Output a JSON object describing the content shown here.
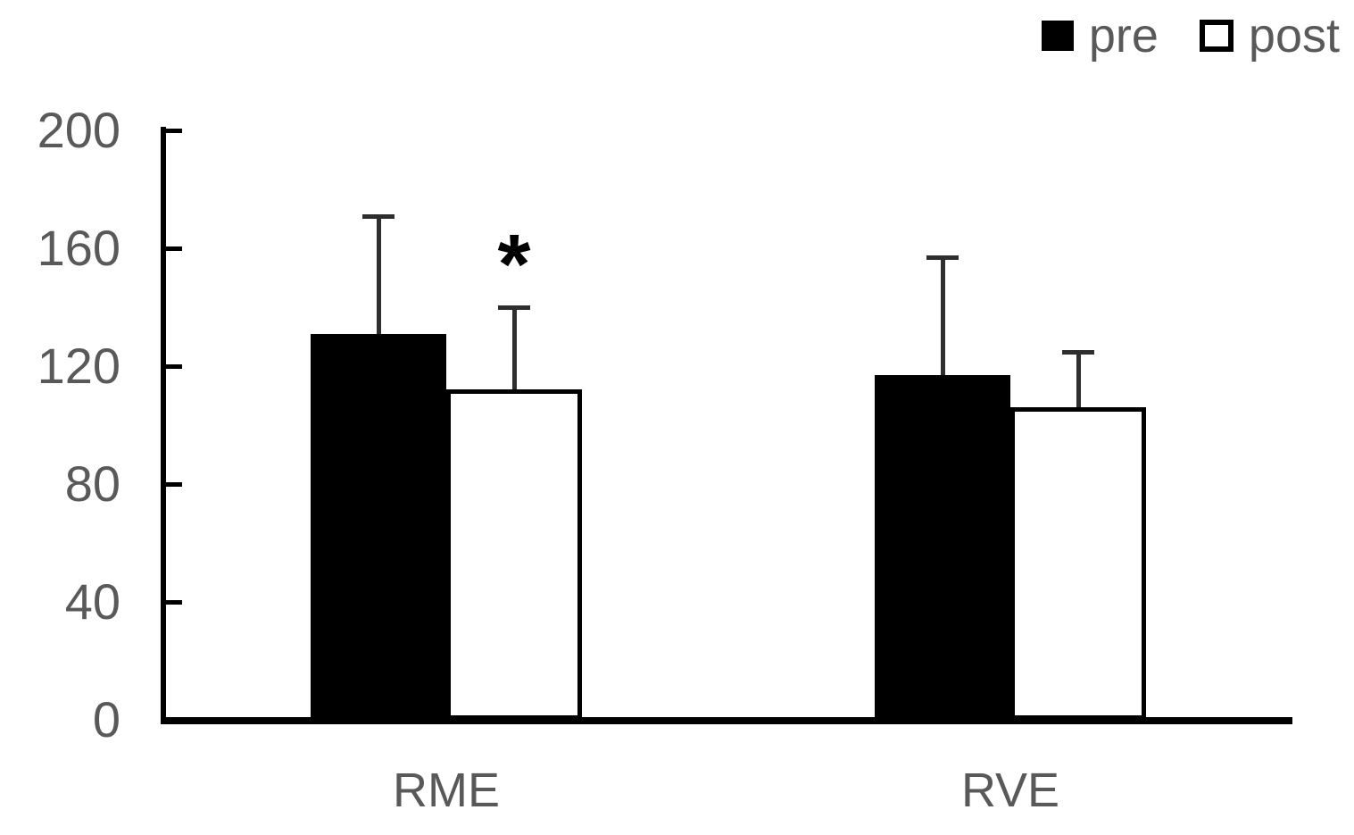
{
  "chart_data": {
    "type": "bar",
    "title": "",
    "xlabel": "",
    "ylabel": "",
    "categories": [
      "RME",
      "RVE"
    ],
    "series": [
      {
        "name": "pre",
        "fill": "black",
        "values": [
          131,
          117
        ],
        "errors_up": [
          40,
          40
        ]
      },
      {
        "name": "post",
        "fill": "white",
        "values": [
          112,
          106
        ],
        "errors_up": [
          28,
          19
        ]
      }
    ],
    "annotations": [
      {
        "text": "*",
        "category": "RME",
        "series": "post"
      }
    ],
    "ylim": [
      0,
      200
    ],
    "yticks": [
      0,
      40,
      80,
      120,
      160,
      200
    ],
    "grid": false,
    "legend_position": "top-right",
    "colors": {
      "pre_fill": "#000000",
      "post_fill": "#ffffff",
      "post_border": "#000000",
      "axis": "#000000",
      "error_bar": "#2e2e2e",
      "tick_label_text": "#595959",
      "category_label_text": "#595959",
      "legend_text": "#595959"
    }
  },
  "legend": {
    "items": [
      {
        "label": "pre",
        "swatch": "filled-black-square"
      },
      {
        "label": "post",
        "swatch": "outlined-white-square"
      }
    ]
  }
}
